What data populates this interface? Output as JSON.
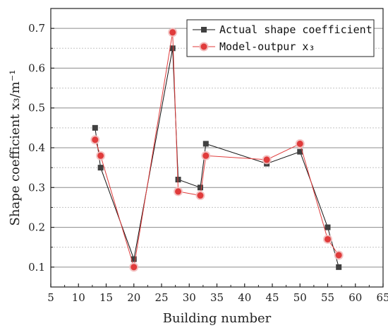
{
  "chart_data": {
    "type": "line",
    "xlabel": "Building number",
    "ylabel": "Shape coefficient x₃/m⁻¹",
    "xlim": [
      5,
      65
    ],
    "ylim": [
      0.05,
      0.75
    ],
    "xticks": [
      "5",
      "10",
      "15",
      "20",
      "25",
      "30",
      "35",
      "40",
      "45",
      "50",
      "55",
      "60",
      "65"
    ],
    "yticks": [
      "0.1",
      "0.2",
      "0.3",
      "0.4",
      "0.5",
      "0.6",
      "0.7"
    ],
    "grid": "horizontal",
    "legend_position": "top-right",
    "x": [
      13,
      14,
      20,
      27,
      28,
      32,
      33,
      44,
      50,
      55,
      57
    ],
    "series": [
      {
        "name": "Actual shape coefficient",
        "marker": "square",
        "color": "#404040",
        "values": [
          0.45,
          0.35,
          0.12,
          0.65,
          0.32,
          0.3,
          0.41,
          0.36,
          0.39,
          0.2,
          0.1
        ]
      },
      {
        "name": "Model-outpur x₃",
        "marker": "circle",
        "color": "#e03b3b",
        "values": [
          0.42,
          0.38,
          0.1,
          0.69,
          0.29,
          0.28,
          0.38,
          0.37,
          0.41,
          0.17,
          0.13
        ]
      }
    ]
  }
}
